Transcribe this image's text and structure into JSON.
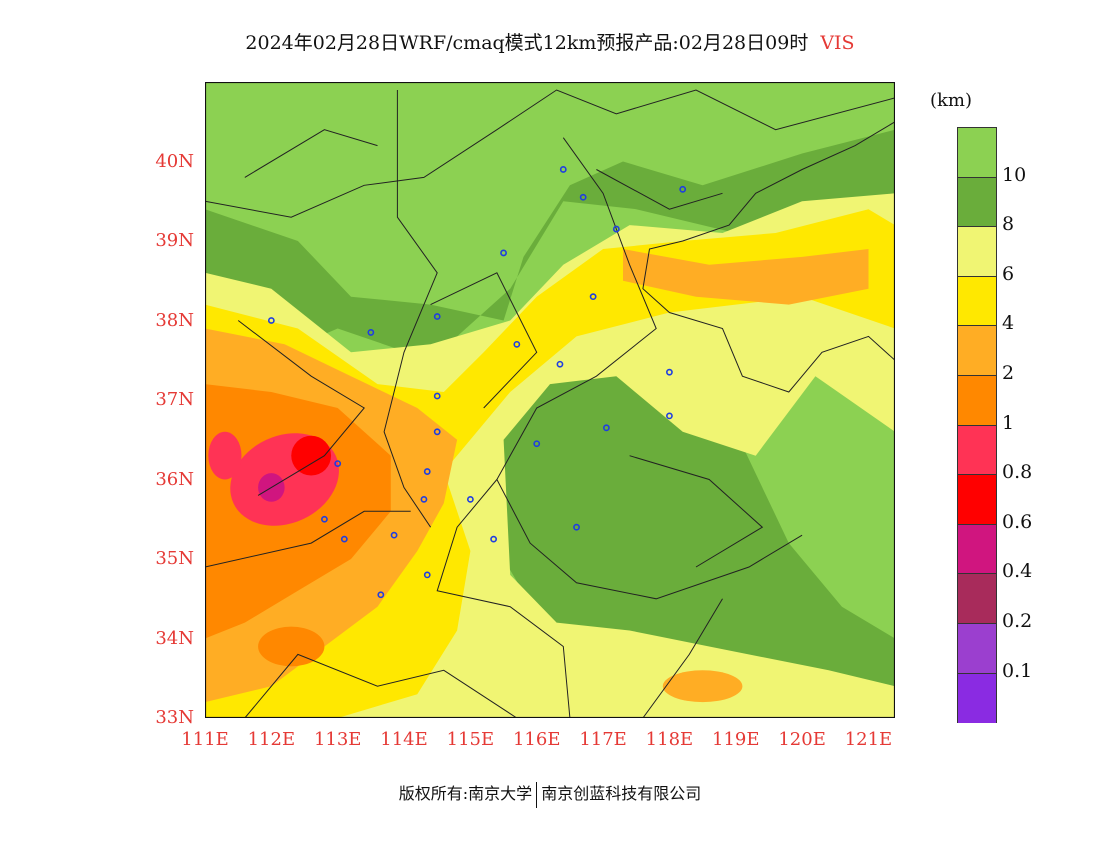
{
  "title": {
    "main": "2024年02月28日WRF/cmaq模式12km预报产品:02月28日09时",
    "variable": "VIS"
  },
  "legend": {
    "units": "(km)",
    "colors": [
      "#8cd152",
      "#6aad3b",
      "#f0f573",
      "#ffe800",
      "#ffad24",
      "#ff8800",
      "#ff3355",
      "#ff0000",
      "#d0157f",
      "#a82b5b",
      "#9b3fcf",
      "#8a2be2"
    ],
    "tick_labels": [
      "10",
      "8",
      "6",
      "4",
      "2",
      "1",
      "0.8",
      "0.6",
      "0.4",
      "0.2",
      "0.1"
    ]
  },
  "map": {
    "lat_labels": [
      "40N",
      "39N",
      "38N",
      "37N",
      "36N",
      "35N",
      "34N",
      "33N"
    ],
    "lon_labels": [
      "111E",
      "112E",
      "113E",
      "114E",
      "115E",
      "116E",
      "117E",
      "118E",
      "119E",
      "120E",
      "121E"
    ],
    "lat_range": [
      33,
      41
    ],
    "lon_range": [
      111,
      121.4
    ],
    "axis_label_color": "#e53935",
    "stations": [
      [
        116.4,
        39.9
      ],
      [
        118.2,
        39.65
      ],
      [
        116.7,
        39.55
      ],
      [
        117.2,
        39.15
      ],
      [
        115.5,
        38.85
      ],
      [
        116.85,
        38.3
      ],
      [
        112.0,
        38.0
      ],
      [
        113.5,
        37.85
      ],
      [
        114.5,
        38.05
      ],
      [
        115.7,
        37.7
      ],
      [
        116.35,
        37.45
      ],
      [
        118.0,
        37.35
      ],
      [
        114.5,
        37.05
      ],
      [
        118.0,
        36.8
      ],
      [
        117.05,
        36.65
      ],
      [
        114.5,
        36.6
      ],
      [
        116.0,
        36.45
      ],
      [
        113.0,
        36.2
      ],
      [
        114.35,
        36.1
      ],
      [
        114.3,
        35.75
      ],
      [
        115.0,
        35.75
      ],
      [
        112.8,
        35.5
      ],
      [
        116.6,
        35.4
      ],
      [
        113.85,
        35.3
      ],
      [
        113.1,
        35.25
      ],
      [
        115.35,
        35.25
      ],
      [
        114.35,
        34.8
      ],
      [
        113.65,
        34.55
      ]
    ]
  },
  "footer": {
    "left": "版权所有:南京大学",
    "right": "南京创蓝科技有限公司"
  }
}
